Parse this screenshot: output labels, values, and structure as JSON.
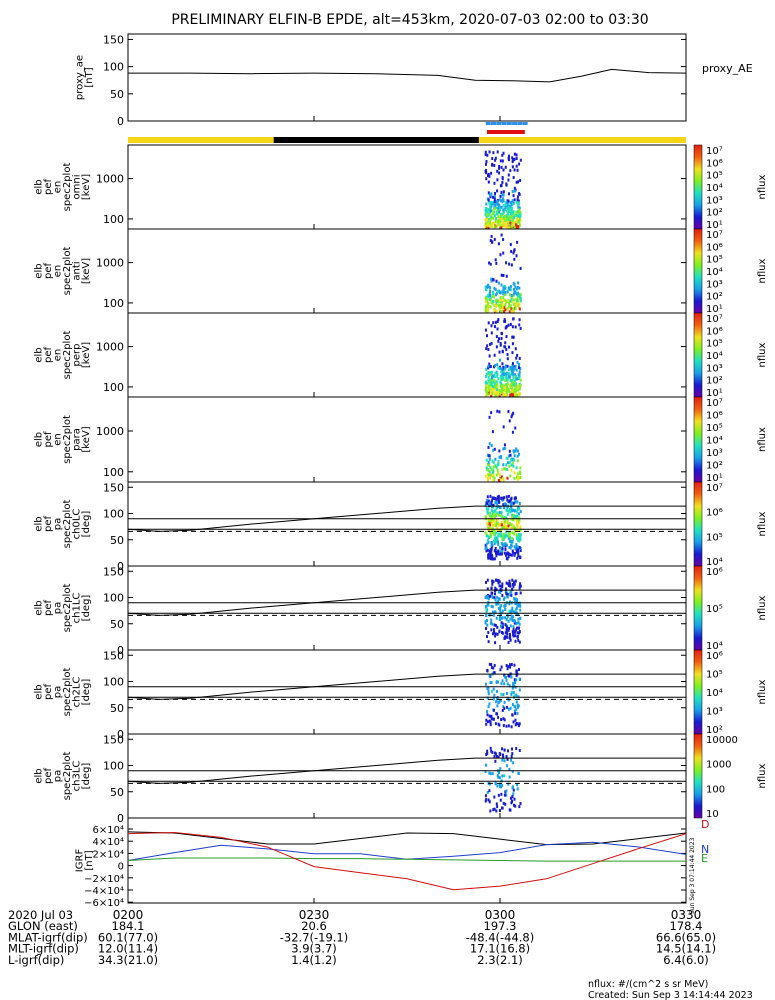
{
  "title": "PRELIMINARY ELFIN-B EPDE, alt=453km, 2020-07-03 02:00 to 03:30",
  "colors": {
    "orbit_bar": [
      "#f5d516",
      "#000000"
    ],
    "science_zone": "#2f8ff0",
    "red_marker": "#e01010",
    "geo_x": "#000000",
    "geo_y": "#1f3fc8",
    "geo_z": "#2a9a2a",
    "geo_d": "#d01010"
  },
  "orbit_bar": {
    "segments": [
      {
        "from_min": 0,
        "to_min": 23.5,
        "color": "yellow"
      },
      {
        "from_min": 23.5,
        "to_min": 56.6,
        "color": "black"
      },
      {
        "from_min": 56.6,
        "to_min": 90,
        "color": "yellow"
      }
    ]
  },
  "science_zone": {
    "from_min": 57.7,
    "to_min": 64.2
  },
  "red_marker": {
    "from_min": 57.9,
    "to_min": 64.0
  },
  "panels": [
    {
      "ylabel": [
        "proxy_ae",
        "[nT]"
      ],
      "ticks": [
        "150",
        "100",
        "50",
        "0"
      ],
      "right_label": "proxy_AE"
    },
    {
      "ylabel": [
        "elb",
        "pef",
        "en",
        "spec2plot",
        "omni",
        "[keV]"
      ],
      "ticks": [
        "1000",
        "100"
      ],
      "cb_label": "nflux"
    },
    {
      "ylabel": [
        "elb",
        "pef",
        "en",
        "spec2plot",
        "anti",
        "[keV]"
      ],
      "ticks": [
        "1000",
        "100"
      ],
      "cb_label": "nflux"
    },
    {
      "ylabel": [
        "elb",
        "pef",
        "en",
        "spec2plot",
        "perp",
        "[keV]"
      ],
      "ticks": [
        "1000",
        "100"
      ],
      "cb_label": "nflux"
    },
    {
      "ylabel": [
        "elb",
        "pef",
        "en",
        "spec2plot",
        "para",
        "[keV]"
      ],
      "ticks": [
        "1000",
        "100"
      ],
      "cb_label": "nflux"
    },
    {
      "ylabel": [
        "elb",
        "pef",
        "pa",
        "spec2plot",
        "ch0LC",
        "[deg]"
      ],
      "ticks": [
        "150",
        "100",
        "50",
        "0"
      ],
      "cb_label": "nflux"
    },
    {
      "ylabel": [
        "elb",
        "pef",
        "pa",
        "spec2plot",
        "ch1LC",
        "[deg]"
      ],
      "ticks": [
        "150",
        "100",
        "50",
        "0"
      ],
      "cb_label": "nflux"
    },
    {
      "ylabel": [
        "elb",
        "pef",
        "pa",
        "spec2plot",
        "ch2LC",
        "[deg]"
      ],
      "ticks": [
        "150",
        "100",
        "50",
        "0"
      ],
      "cb_label": "nflux"
    },
    {
      "ylabel": [
        "elb",
        "pef",
        "pa",
        "spec2plot",
        "ch3LC",
        "[deg]"
      ],
      "ticks": [
        "150",
        "100",
        "50",
        "0"
      ],
      "cb_label": "nflux"
    },
    {
      "ylabel": [
        "IGRF",
        "[nT]"
      ],
      "ticks": [
        "6×10⁴",
        "4×10⁴",
        "2×10⁴",
        "0",
        "−2×10⁴",
        "−4×10⁴",
        "−6×10⁴"
      ]
    }
  ],
  "colorbars": [
    {
      "labels": [
        "10⁷",
        "10⁶",
        "10⁵",
        "10⁴",
        "10³",
        "10²",
        "10¹"
      ]
    },
    {
      "labels": [
        "10⁷",
        "10⁶",
        "10⁵",
        "10⁴",
        "10³",
        "10²",
        "10¹"
      ]
    },
    {
      "labels": [
        "10⁷",
        "10⁶",
        "10⁵",
        "10⁴",
        "10³",
        "10²",
        "10¹"
      ]
    },
    {
      "labels": [
        "10⁷",
        "10⁶",
        "10⁵",
        "10⁴",
        "10³",
        "10²",
        "10¹"
      ]
    },
    {
      "labels": [
        "10⁷",
        "10⁶",
        "10⁵",
        "10⁴"
      ]
    },
    {
      "labels": [
        "10⁶",
        "10⁵",
        "10⁴"
      ]
    },
    {
      "labels": [
        "10⁶",
        "10⁵",
        "10⁴",
        "10³",
        "10²"
      ]
    },
    {
      "labels": [
        "10000",
        "1000",
        "100",
        "10"
      ]
    }
  ],
  "igrf_letters": [
    "D",
    "N",
    "E"
  ],
  "chart_data": {
    "type": "line",
    "x_range_min": [
      0,
      90
    ],
    "proxy_ae": {
      "x_min": [
        0,
        10,
        20,
        30,
        40,
        50,
        56,
        62,
        68,
        73,
        78,
        84,
        90
      ],
      "y": [
        88,
        88,
        87,
        88,
        87,
        84,
        75,
        74,
        72,
        82,
        95,
        89,
        88
      ],
      "ylim": [
        0,
        150
      ]
    },
    "loss_cone_lines": {
      "x_min": [
        0,
        5,
        10,
        20,
        30,
        40,
        50,
        56,
        60,
        90
      ],
      "y": [
        70,
        66,
        68,
        80,
        90,
        100,
        110,
        114,
        114,
        114
      ],
      "bounds_solid": [
        90,
        70
      ],
      "dashed": 66
    },
    "spectra_panels": [
      {
        "name": "omni",
        "spread_deg_or_log": [
          80,
          2000
        ]
      },
      {
        "name": "anti",
        "spread_deg_or_log": [
          80,
          500
        ]
      },
      {
        "name": "perp",
        "spread_deg_or_log": [
          80,
          1500
        ]
      },
      {
        "name": "para",
        "spread_deg_or_log": [
          80,
          300
        ]
      }
    ],
    "igrf": {
      "x_min": [
        0,
        7.5,
        15,
        22.5,
        30,
        37.5,
        45,
        52.5,
        60,
        67.5,
        75,
        82.5,
        90
      ],
      "ylim": [
        -60000,
        60000
      ],
      "series": [
        {
          "color": "#000000",
          "y": [
            47000,
            45000,
            36000,
            27000,
            27000,
            36000,
            45000,
            44000,
            35000,
            26000,
            27000,
            36000,
            45000
          ]
        },
        {
          "color": "#1f3fc8",
          "y": [
            0,
            13000,
            25000,
            19000,
            11000,
            11000,
            2000,
            7000,
            13000,
            26000,
            30000,
            22000,
            10000
          ]
        },
        {
          "color": "#2a9a2a",
          "y": [
            0,
            4000,
            4000,
            4000,
            3000,
            3000,
            2000,
            1000,
            0,
            -1000,
            -1000,
            -1000,
            -1000
          ]
        },
        {
          "color": "#d01010",
          "y": [
            44000,
            46000,
            38000,
            22000,
            -10000,
            -20000,
            -30000,
            -48000,
            -42000,
            -30000,
            -5000,
            20000,
            44000
          ]
        }
      ]
    }
  },
  "x_axis": {
    "ticks": [
      "0200",
      "0230",
      "0300",
      "0330"
    ],
    "rows": [
      {
        "label": "2020 Jul 03",
        "values": [
          "",
          "",
          "",
          ""
        ]
      },
      {
        "label": "GLON (east)",
        "values": [
          "184.1",
          "20.6",
          "197.3",
          "178.4"
        ]
      },
      {
        "label": "MLAT-igrf(dip)",
        "values": [
          "60.1(77.0)",
          "-32.7(-19.1)",
          "-48.4(-44.8)",
          "66.6(65.0)"
        ]
      },
      {
        "label": "MLT-igrf(dip)",
        "values": [
          "12.0(11.4)",
          "3.9(3.7)",
          "17.1(16.8)",
          "14.5(14.1)"
        ]
      },
      {
        "label": "L-igrf(dip)",
        "values": [
          "34.3(21.0)",
          "1.4(1.2)",
          "2.3(2.1)",
          "6.4(6.0)"
        ]
      }
    ]
  },
  "footer": {
    "units": "nflux: #/(cm^2 s sr MeV)",
    "created": "Created: Sun Sep  3 14:14:44 2023",
    "stamp": "Sun Sep  3 07:14:44 2023"
  }
}
